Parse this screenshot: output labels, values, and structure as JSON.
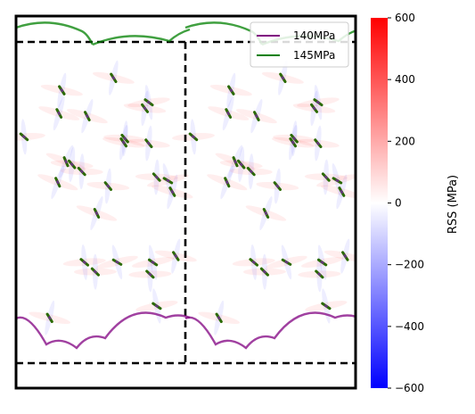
{
  "chart_data": {
    "type": "heatmap",
    "title": "",
    "xlabel": "",
    "ylabel": "",
    "colorbar": {
      "label": "RSS (MPa)",
      "range": [
        -600,
        600
      ],
      "ticks": [
        600,
        400,
        200,
        0,
        -200,
        -400,
        -600
      ],
      "tick_labels": [
        "600",
        "400",
        "200",
        "0",
        "−200",
        "−400",
        "−600"
      ],
      "colormap": [
        "#0000ff",
        "#ffffff",
        "#ff0000"
      ]
    },
    "legend": {
      "position": "top-right",
      "entries": [
        {
          "label": "140MPa",
          "color": "#800080"
        },
        {
          "label": "145MPa",
          "color": "#008000"
        }
      ]
    },
    "series": [
      {
        "name": "140MPa",
        "color": "#800080"
      },
      {
        "name": "145MPa",
        "color": "#008000"
      }
    ],
    "axes_visible": false,
    "grid": false
  }
}
